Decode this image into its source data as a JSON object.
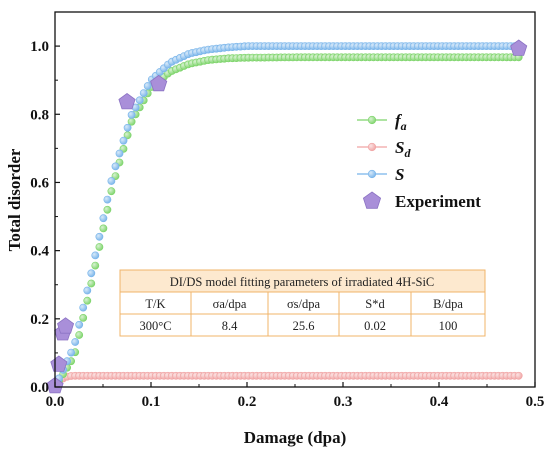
{
  "chart_data": {
    "type": "scatter",
    "xlabel": "Damage (dpa)",
    "ylabel": "Total disorder",
    "xlim": [
      0.0,
      0.5
    ],
    "ylim": [
      0.0,
      1.1
    ],
    "x_ticks": [
      "0.0",
      "0.1",
      "0.2",
      "0.3",
      "0.4",
      "0.5"
    ],
    "y_ticks": [
      "0.0",
      "0.2",
      "0.4",
      "0.6",
      "0.8",
      "1.0"
    ],
    "grid": false,
    "legend_placement": "right",
    "series": [
      {
        "name": "fa",
        "name_main": "f",
        "name_sub": "a",
        "color": "#7dd46a",
        "marker": "circle",
        "x": [
          0.0,
          0.02,
          0.04,
          0.06,
          0.08,
          0.1,
          0.12,
          0.14,
          0.16,
          0.18,
          0.2,
          0.25,
          0.3,
          0.35,
          0.4,
          0.45,
          0.485
        ],
        "y": [
          0.0,
          0.09,
          0.33,
          0.59,
          0.78,
          0.878,
          0.925,
          0.948,
          0.959,
          0.964,
          0.966,
          0.967,
          0.967,
          0.967,
          0.967,
          0.967,
          0.967
        ]
      },
      {
        "name": "Sd",
        "name_main": "S",
        "name_sub": "d",
        "color": "#f0a3a3",
        "marker": "circle",
        "x": [
          0.0,
          0.005,
          0.01,
          0.015,
          0.02,
          0.05,
          0.1,
          0.2,
          0.3,
          0.4,
          0.485
        ],
        "y": [
          0.0,
          0.018,
          0.028,
          0.032,
          0.033,
          0.033,
          0.033,
          0.033,
          0.033,
          0.033,
          0.033
        ]
      },
      {
        "name": "S",
        "name_main": "S",
        "name_sub": "",
        "color": "#78b4ea",
        "marker": "circle",
        "x": [
          0.0,
          0.02,
          0.04,
          0.06,
          0.08,
          0.1,
          0.12,
          0.14,
          0.16,
          0.18,
          0.2,
          0.25,
          0.3,
          0.35,
          0.4,
          0.45,
          0.485
        ],
        "y": [
          0.0,
          0.12,
          0.36,
          0.62,
          0.8,
          0.9,
          0.952,
          0.978,
          0.99,
          0.996,
          1.0,
          1.0,
          1.0,
          1.0,
          1.0,
          1.0,
          1.0
        ]
      },
      {
        "name": "Experiment",
        "name_main": "Experiment",
        "name_sub": "",
        "color": "#a98fd9",
        "marker": "pentagon",
        "x": [
          0.0,
          0.004,
          0.008,
          0.011,
          0.075,
          0.108,
          0.483
        ],
        "y": [
          0.003,
          0.066,
          0.158,
          0.178,
          0.836,
          0.889,
          0.993
        ]
      }
    ],
    "table": {
      "title": "DI/DS model fitting parameters of irradiated 4H-SiC",
      "headers": [
        "T/K",
        "σa/dpa",
        "σs/dpa",
        "S*d",
        "B/dpa"
      ],
      "rows": [
        [
          "300°C",
          "8.4",
          "25.6",
          "0.02",
          "100"
        ]
      ]
    }
  }
}
